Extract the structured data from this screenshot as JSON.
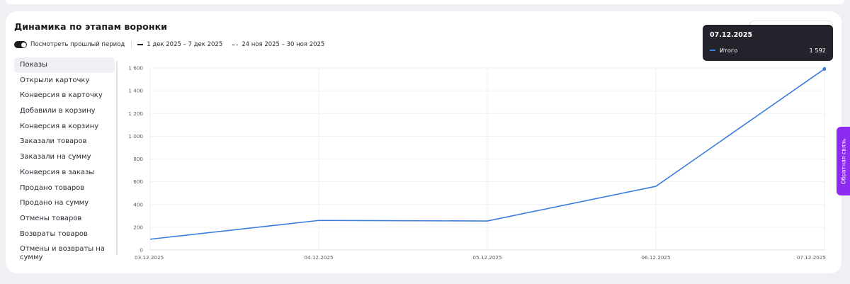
{
  "panel": {
    "title": "Динамика по этапам воронки",
    "compare_toggle_label": "Посмотреть прошлый период",
    "compare_toggle_on": true,
    "current_period": "1 дек 2025 – 7 дек 2025",
    "previous_period": "24 ноя 2025 – 30 ноя 2025"
  },
  "metrics": [
    {
      "label": "Показы",
      "active": true
    },
    {
      "label": "Открыли карточку"
    },
    {
      "label": "Конверсия в карточку"
    },
    {
      "label": "Добавили в корзину"
    },
    {
      "label": "Конверсия в корзину"
    },
    {
      "label": "Заказали товаров"
    },
    {
      "label": "Заказали на сумму"
    },
    {
      "label": "Конверсия в заказы"
    },
    {
      "label": "Продано товаров"
    },
    {
      "label": "Продано на сумму"
    },
    {
      "label": "Отмены товаров"
    },
    {
      "label": "Возвраты товаров"
    },
    {
      "label": "Отмены и возвраты на сумму"
    }
  ],
  "tooltip": {
    "date": "07.12.2025",
    "series_name": "Итого",
    "value": "1 592"
  },
  "feedback_tab": "Обратная связь",
  "colors": {
    "line": "#3b7ddd",
    "accent_feedback": "#8e2bf0",
    "tooltip_bg": "#23232b"
  },
  "chart_data": {
    "type": "line",
    "x": [
      "03.12.2025",
      "04.12.2025",
      "05.12.2025",
      "06.12.2025",
      "07.12.2025"
    ],
    "y_ticks": [
      "0",
      "200",
      "400",
      "600",
      "800",
      "1 000",
      "1 200",
      "1 400",
      "1 600"
    ],
    "ylim": [
      0,
      1600
    ],
    "grid": true,
    "series": [
      {
        "name": "Итого",
        "values": [
          95,
          260,
          255,
          560,
          1592
        ]
      }
    ]
  }
}
